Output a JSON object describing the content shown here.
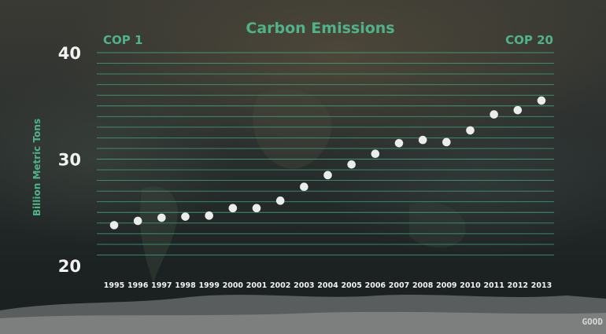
{
  "chart_data": {
    "type": "scatter",
    "title": "Carbon Emissions",
    "ylabel": "Billion Metric Tons",
    "xlabel": "",
    "ylim": [
      20,
      40
    ],
    "yticks": [
      40,
      30,
      20
    ],
    "grid": true,
    "annotations": {
      "left": "COP 1",
      "right": "COP 20"
    },
    "categories": [
      "1995",
      "1996",
      "1997",
      "1998",
      "1999",
      "2000",
      "2001",
      "2002",
      "2003",
      "2004",
      "2005",
      "2006",
      "2007",
      "2008",
      "2009",
      "2010",
      "2011",
      "2012",
      "2013"
    ],
    "values": [
      23.8,
      24.2,
      24.5,
      24.6,
      24.7,
      25.4,
      25.4,
      26.1,
      27.4,
      28.5,
      29.5,
      30.5,
      31.5,
      31.8,
      31.6,
      32.7,
      34.2,
      34.6,
      35.5
    ],
    "colors": {
      "accent": "#4fb389",
      "grid": "#3fa87e",
      "point": "#ececec",
      "text": "#f2f2f2"
    }
  },
  "watermark": "GOOD"
}
